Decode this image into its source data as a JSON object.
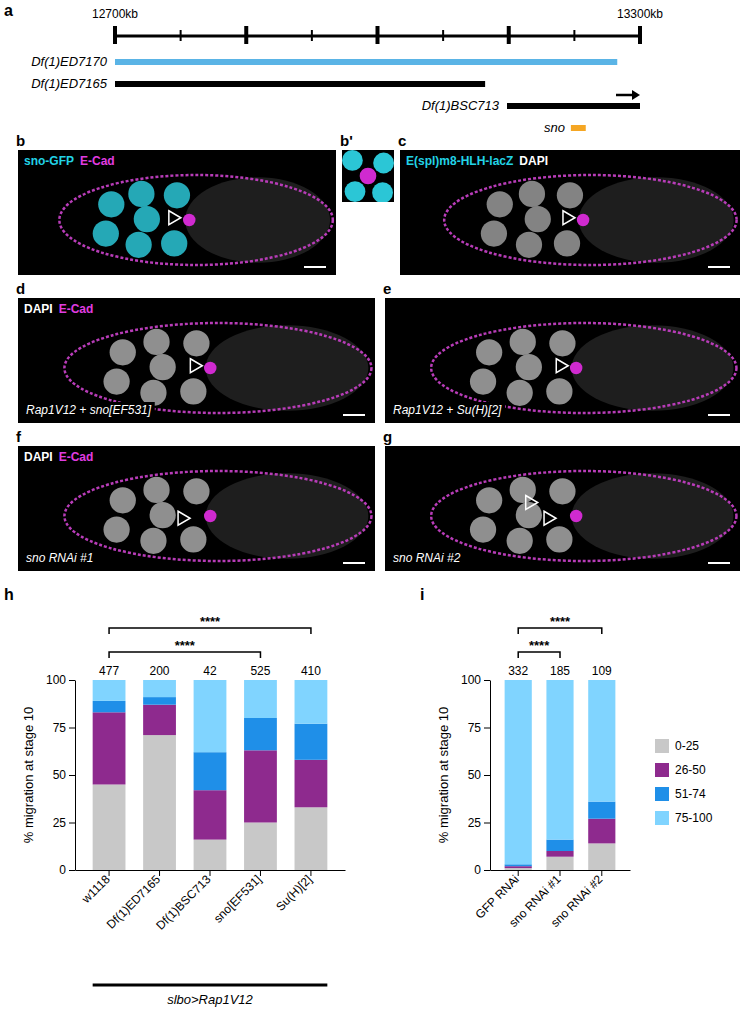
{
  "map": {
    "letter": "a",
    "range": [
      12700,
      13300
    ],
    "ticks": [
      12700,
      12775,
      12850,
      12925,
      13000,
      13075,
      13150,
      13225,
      13300
    ],
    "tick_labels": [
      {
        "value": 12700,
        "label": "12700kb"
      },
      {
        "value": 13300,
        "label": "13300kb"
      }
    ],
    "deficiencies": [
      {
        "name": "Df(1)ED7170",
        "start": 12700,
        "end": 13274,
        "color": "#5ab4e6"
      },
      {
        "name": "Df(1)ED7165",
        "start": 12700,
        "end": 13123,
        "color": "#000000"
      },
      {
        "name": "Df(1)BSC713",
        "start": 13148,
        "end": 13300,
        "color": "#000000",
        "arrow": true
      }
    ],
    "gene": {
      "name": "sno",
      "start": 13221,
      "end": 13238,
      "color": "#f5a623"
    }
  },
  "images": [
    {
      "letter": "b",
      "channels": [
        {
          "text": "sno-GFP",
          "color": "#22d3e6"
        },
        {
          "text": "E-Cad",
          "color": "#e03ce0"
        }
      ]
    },
    {
      "letter": "b'"
    },
    {
      "letter": "c",
      "channels": [
        {
          "text": "E(spl)m8-HLH-lacZ",
          "color": "#22d3e6"
        },
        {
          "text": "DAPI",
          "color": "#ffffff"
        }
      ]
    },
    {
      "letter": "d",
      "channels": [
        {
          "text": "DAPI",
          "color": "#ffffff"
        },
        {
          "text": "E-Cad",
          "color": "#e03ce0"
        }
      ],
      "caption": "Rap1V12 + sno[EF531]"
    },
    {
      "letter": "e",
      "caption": "Rap1V12 + Su(H)[2]"
    },
    {
      "letter": "f",
      "channels": [
        {
          "text": "DAPI",
          "color": "#ffffff"
        },
        {
          "text": "E-Cad",
          "color": "#e03ce0"
        }
      ],
      "caption": "sno RNAi #1"
    },
    {
      "letter": "g",
      "caption": "sno RNAi #2"
    }
  ],
  "chart_data": [
    {
      "type": "bar",
      "stacked": true,
      "letter": "h",
      "categories": [
        "w1118",
        "Df(1)ED7165",
        "Df(1)BSC713",
        "sno[EF531]",
        "Su(H)[2]"
      ],
      "series": [
        {
          "color": "#c8c8c8",
          "values": [
            45,
            71,
            16,
            25,
            33
          ]
        },
        {
          "color": "#8e2a8e",
          "values": [
            38,
            16,
            26,
            38,
            25
          ]
        },
        {
          "color": "#1f8fe8",
          "values": [
            6,
            4,
            20,
            17,
            19
          ]
        },
        {
          "color": "#80d4ff",
          "values": [
            11,
            9,
            38,
            20,
            23
          ]
        }
      ],
      "counts": [
        477,
        200,
        42,
        525,
        410
      ],
      "comparisons": [
        {
          "from": 0,
          "to": 3,
          "label": "****"
        },
        {
          "from": 0,
          "to": 4,
          "label": "****"
        }
      ],
      "group_label": {
        "text": "slbo>Rap1V12",
        "from": 0,
        "to": 4
      },
      "y_label": "% migration at stage 10",
      "ylim": [
        0,
        100
      ],
      "yticks": [
        0,
        25,
        50,
        75,
        100
      ]
    },
    {
      "type": "bar",
      "stacked": true,
      "letter": "i",
      "categories": [
        "GFP RNAi",
        "sno RNAi #1",
        "sno RNAi #2"
      ],
      "series": [
        {
          "name": "0-25",
          "color": "#c8c8c8",
          "values": [
            1,
            7,
            14
          ]
        },
        {
          "name": "26-50",
          "color": "#8e2a8e",
          "values": [
            1,
            3,
            13
          ]
        },
        {
          "name": "51-74",
          "color": "#1f8fe8",
          "values": [
            1,
            6,
            9
          ]
        },
        {
          "name": "75-100",
          "color": "#80d4ff",
          "values": [
            97,
            84,
            64
          ]
        }
      ],
      "counts": [
        332,
        185,
        109
      ],
      "comparisons": [
        {
          "from": 0,
          "to": 1,
          "label": "****"
        },
        {
          "from": 0,
          "to": 2,
          "label": "****"
        }
      ],
      "legend": "right",
      "y_label": "% migration at stage 10",
      "ylim": [
        0,
        100
      ],
      "yticks": [
        0,
        25,
        50,
        75,
        100
      ]
    }
  ]
}
